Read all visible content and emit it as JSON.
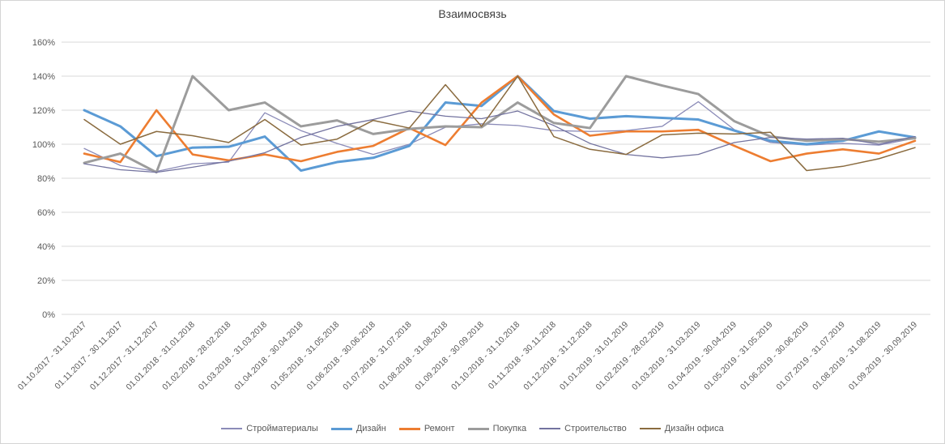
{
  "window": {
    "background": "#ffffff",
    "border_color": "#d4d4d4"
  },
  "chart_data": {
    "type": "line",
    "title": "Взаимосвязь",
    "grid": true,
    "legend_position": "bottom",
    "y_axis": {
      "min": 0,
      "max": 160,
      "step": 20,
      "suffix": "%",
      "tick_labels": [
        "0%",
        "20%",
        "40%",
        "60%",
        "80%",
        "100%",
        "120%",
        "140%",
        "160%"
      ]
    },
    "categories": [
      "01.10.2017 - 31.10.2017",
      "01.11.2017 - 30.11.2017",
      "01.12.2017 - 31.12.2017",
      "01.01.2018 - 31.01.2018",
      "01.02.2018 - 28.02.2018",
      "01.03.2018 - 31.03.2018",
      "01.04.2018 - 30.04.2018",
      "01.05.2018 - 31.05.2018",
      "01.06.2018 - 30.06.2018",
      "01.07.2018 - 31.07.2018",
      "01.08.2018 - 31.08.2018",
      "01.09.2018 - 30.09.2018",
      "01.10.2018 - 31.10.2018",
      "01.11.2018 - 30.11.2018",
      "01.12.2018 - 31.12.2018",
      "01.01.2019 - 31.01.2019",
      "01.02.2019 - 28.02.2019",
      "01.03.2019 - 31.03.2019",
      "01.04.2019 - 30.04.2019",
      "01.05.2019 - 31.05.2019",
      "01.06.2019 - 30.06.2019",
      "01.07.2019 - 31.07.2019",
      "01.08.2019 - 31.08.2019",
      "01.09.2019 - 30.09.2019"
    ],
    "series": [
      {
        "name": "Стройматериалы",
        "color": "#8b8bb8",
        "width": 1.3,
        "values": [
          97.5,
          87.5,
          84,
          88.5,
          89.5,
          118.5,
          108,
          100.5,
          94,
          100,
          110,
          112,
          111,
          108,
          107.5,
          108,
          110.5,
          125,
          108.5,
          101,
          99.5,
          100.5,
          99.5,
          103.5
        ]
      },
      {
        "name": "Дизайн",
        "color": "#5b9bd5",
        "width": 3,
        "values": [
          120,
          110.5,
          93,
          98,
          98.5,
          104.5,
          84.5,
          89.5,
          92,
          99,
          124.5,
          122.5,
          140,
          119.5,
          115,
          116.5,
          115.5,
          114.5,
          108,
          102,
          100,
          102,
          107.5,
          104
        ]
      },
      {
        "name": "Ремонт",
        "color": "#ed7d31",
        "width": 2.6,
        "values": [
          94.5,
          89.5,
          120,
          94,
          90.5,
          94,
          90,
          95.5,
          99,
          109.5,
          99.5,
          124.5,
          140,
          117.5,
          105,
          107.5,
          107.5,
          108.5,
          99,
          90,
          94.5,
          97,
          94.5,
          102
        ]
      },
      {
        "name": "Покупка",
        "color": "#9c9c9c",
        "width": 3,
        "values": [
          89,
          94.5,
          83.5,
          140,
          120,
          124.5,
          110.5,
          114,
          106,
          109,
          110.5,
          110,
          124.5,
          112.5,
          109.5,
          140,
          134.5,
          129.5,
          113.5,
          104.5,
          102,
          103,
          101.5,
          103.5
        ]
      },
      {
        "name": "Строительство",
        "color": "#73739f",
        "width": 1.3,
        "values": [
          88.5,
          85,
          83.5,
          86.5,
          90,
          95,
          104,
          110.5,
          114.5,
          119.5,
          116.5,
          115,
          119.5,
          111,
          100.5,
          94,
          92,
          94,
          101,
          104,
          103,
          103.5,
          100,
          104.5
        ]
      },
      {
        "name": "Дизайн офиса",
        "color": "#8a6b3f",
        "width": 1.5,
        "values": [
          114.5,
          100,
          107.5,
          105,
          101,
          114.5,
          99.5,
          103,
          114,
          109.5,
          135,
          110.5,
          140,
          104.5,
          97,
          94,
          105.5,
          106.5,
          106,
          107,
          84.5,
          87,
          91.5,
          98
        ]
      }
    ]
  }
}
